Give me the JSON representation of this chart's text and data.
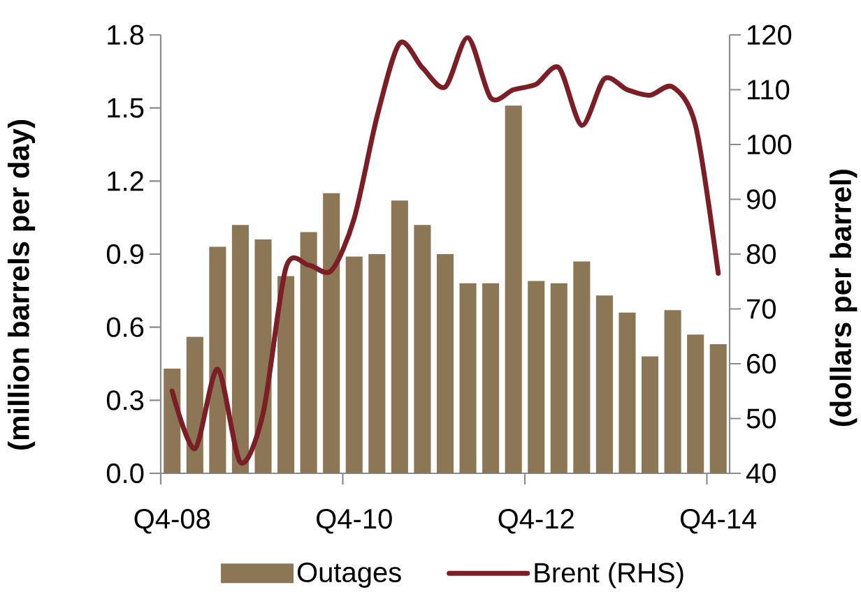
{
  "chart_data": {
    "type": "bar",
    "categories": [
      "Q4-08",
      null,
      null,
      null,
      null,
      null,
      null,
      null,
      "Q4-10",
      null,
      null,
      null,
      null,
      null,
      null,
      null,
      "Q4-12",
      null,
      null,
      null,
      null,
      null,
      null,
      null,
      "Q4-14"
    ],
    "series": [
      {
        "name": "Outages",
        "color": "#8b7755",
        "values": [
          0.43,
          0.56,
          0.93,
          1.02,
          0.96,
          0.81,
          0.99,
          1.15,
          0.89,
          0.9,
          1.12,
          1.02,
          0.9,
          0.78,
          0.78,
          1.51,
          0.79,
          0.78,
          0.87,
          0.73,
          0.66,
          0.48,
          0.67,
          0.57,
          0.53
        ]
      },
      {
        "name": "Brent (RHS)",
        "type": "line",
        "axis": "y2",
        "color": "#7b1e25",
        "values": [
          55,
          44.5,
          59,
          42,
          51,
          77.5,
          78,
          77,
          86.5,
          105,
          118.5,
          114,
          110.5,
          119.5,
          108.5,
          110,
          111,
          114,
          103.5,
          112,
          110,
          109,
          110.5,
          103.5,
          76.5
        ]
      }
    ],
    "ylabel": "(million barrels per day)",
    "y2label": "(dollars per barrel)",
    "ylim": [
      0,
      1.8
    ],
    "yticks": [
      {
        "value": 0,
        "label": "0.0"
      },
      0.3,
      0.6,
      0.9,
      1.2,
      1.5,
      1.8
    ],
    "y2lim": [
      40,
      120
    ],
    "y2ticks": [
      40,
      50,
      60,
      70,
      80,
      90,
      100,
      110,
      120
    ],
    "legend": "bottom"
  }
}
